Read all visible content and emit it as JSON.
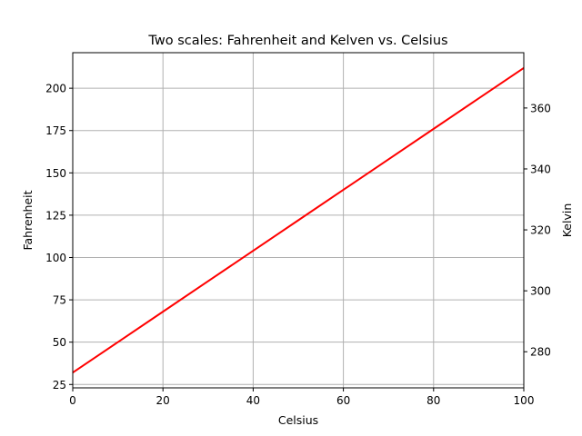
{
  "chart_data": {
    "type": "line",
    "title": "Two scales: Fahrenheit and Kelven vs. Celsius",
    "xlabel": "Celsius",
    "ylabel": "Fahrenheit",
    "y2label": "Kelvin",
    "xlim": [
      0,
      100
    ],
    "ylim": [
      23,
      221
    ],
    "y2lim": [
      268.15,
      378.15
    ],
    "grid": true,
    "x_ticks": [
      "0",
      "20",
      "40",
      "60",
      "80",
      "100"
    ],
    "y_ticks": [
      "25",
      "50",
      "75",
      "100",
      "125",
      "150",
      "175",
      "200"
    ],
    "y2_ticks": [
      "280",
      "300",
      "320",
      "340",
      "360"
    ],
    "series": [
      {
        "color": "#ff0000",
        "x": [
          0,
          10,
          20,
          30,
          40,
          50,
          60,
          70,
          80,
          90,
          100
        ],
        "values": [
          32,
          50,
          68,
          86,
          104,
          122,
          140,
          158,
          176,
          194,
          212
        ]
      }
    ]
  }
}
